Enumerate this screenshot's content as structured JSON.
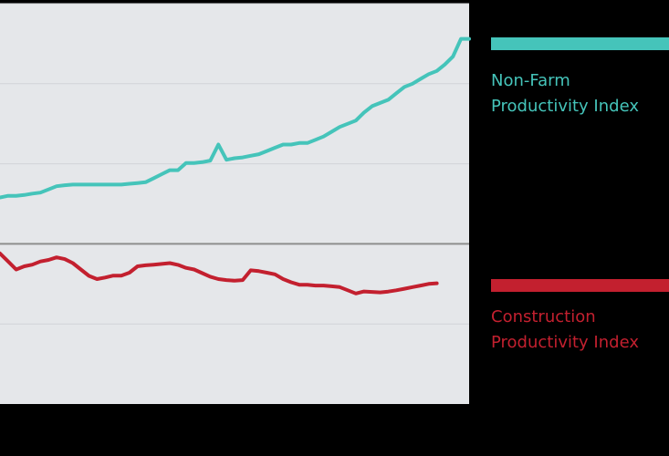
{
  "colors": {
    "page_background": "#000000",
    "plot_background": "#e5e7ea",
    "gridline": "#d2d4d7",
    "baseline": "#8e8e8e",
    "non_farm": "#45c4ba",
    "construction": "#c3202f"
  },
  "chart_data": {
    "type": "line",
    "title": "",
    "xlabel": "",
    "ylabel": "",
    "grid": true,
    "legend_position": "right",
    "xlim": [
      0,
      58
    ],
    "ylim": [
      -100,
      150
    ],
    "baseline_y": 0,
    "gridlines_y": [
      -50,
      0,
      50,
      100,
      150
    ],
    "series": [
      {
        "name": "Non-Farm Productivity Index",
        "color": "#45c4ba",
        "values": [
          29,
          30,
          30,
          30.5,
          31.4,
          32,
          34,
          36,
          36.6,
          37,
          37,
          37,
          37,
          37,
          37,
          37,
          37.5,
          38,
          38.5,
          41,
          43.5,
          46,
          46,
          50.5,
          50.5,
          51,
          52,
          62,
          52.5,
          53.5,
          54,
          55,
          56,
          58,
          60,
          62,
          62,
          63,
          63,
          65,
          67,
          70,
          73,
          75,
          77,
          82,
          86,
          88,
          90,
          94,
          98,
          100,
          103,
          106,
          108,
          112,
          117,
          128,
          128
        ]
      },
      {
        "name": "Construction Productivity Index",
        "color": "#c3202f",
        "values": [
          -6,
          -11,
          -16,
          -14,
          -13,
          -11,
          -10,
          -8.4,
          -9.5,
          -12,
          -16,
          -20,
          -22,
          -21,
          -19.8,
          -19.8,
          -18,
          -14,
          -13.4,
          -13,
          -12.5,
          -12,
          -13.1,
          -15,
          -16,
          -18.3,
          -20.5,
          -22,
          -22.6,
          -23,
          -22.6,
          -16.5,
          -17,
          -18,
          -19,
          -22,
          -24,
          -25.5,
          -25.5,
          -26,
          -26,
          -26.5,
          -27,
          -29,
          -31,
          -29.7,
          -30,
          -30.3,
          -29.8,
          -29,
          -28,
          -27,
          -26,
          -25,
          -24.6
        ]
      }
    ]
  },
  "legend": {
    "non_farm_line1": "Non-Farm",
    "non_farm_line2": "Productivity Index",
    "construction_line1": "Construction",
    "construction_line2": "Productivity Index"
  }
}
